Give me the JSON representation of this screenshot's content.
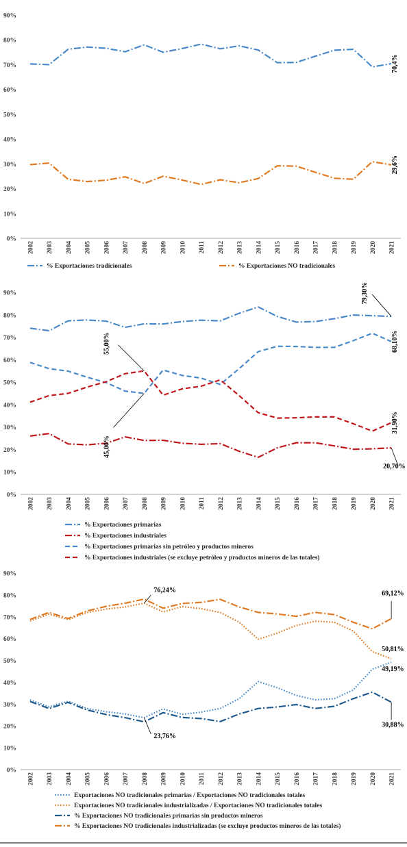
{
  "colors": {
    "blue": "#4a89c8",
    "orange": "#e07a22",
    "red": "#c0181c",
    "darkblue": "#1f5a8c",
    "axis": "#a6a6a6"
  },
  "chart_data": [
    {
      "type": "line",
      "categories": [
        "2002",
        "2003",
        "2004",
        "2005",
        "2006",
        "2007",
        "2008",
        "2009",
        "2010",
        "2011",
        "2012",
        "2013",
        "2014",
        "2015",
        "2016",
        "2017",
        "2018",
        "2019",
        "2020",
        "2021"
      ],
      "ylim": [
        0,
        90
      ],
      "yticks": [
        "0%",
        "10%",
        "20%",
        "30%",
        "40%",
        "50%",
        "60%",
        "70%",
        "80%",
        "90%"
      ],
      "grid": false,
      "legend_position": "bottom",
      "series": [
        {
          "name": "% Exportaciones tradicionales",
          "style": "dashdot",
          "color": "blue",
          "values": [
            70.3,
            70.0,
            76.2,
            77.1,
            76.6,
            75.2,
            78.0,
            75.0,
            76.5,
            78.3,
            76.4,
            77.6,
            75.9,
            70.8,
            70.9,
            73.4,
            75.8,
            76.2,
            69.1,
            70.4
          ]
        },
        {
          "name": "% Exportaciones NO tradicionales",
          "style": "dashdot",
          "color": "orange",
          "values": [
            29.7,
            30.3,
            23.8,
            22.9,
            23.4,
            24.8,
            22.1,
            25.0,
            23.5,
            21.7,
            23.6,
            22.4,
            24.1,
            29.2,
            29.1,
            26.6,
            24.2,
            23.8,
            30.9,
            29.6
          ]
        }
      ],
      "annotations": [
        {
          "text": "70,4%",
          "series": 0,
          "index": 19,
          "dx": 8,
          "dy": 0
        },
        {
          "text": "29,6%",
          "series": 1,
          "index": 19,
          "dx": 8,
          "dy": 0
        }
      ]
    },
    {
      "type": "line",
      "categories": [
        "2002",
        "2003",
        "2004",
        "2005",
        "2006",
        "2007",
        "2008",
        "2009",
        "2010",
        "2011",
        "2012",
        "2013",
        "2014",
        "2015",
        "2016",
        "2017",
        "2018",
        "2019",
        "2020",
        "2021"
      ],
      "ylim": [
        0,
        90
      ],
      "yticks": [
        "0%",
        "10%",
        "20%",
        "30%",
        "40%",
        "50%",
        "60%",
        "70%",
        "80%",
        "90%"
      ],
      "grid": false,
      "legend_position": "bottom",
      "series": [
        {
          "name": "% Exportaciones primarias",
          "style": "dashdot",
          "color": "blue",
          "values": [
            74.0,
            72.9,
            77.3,
            77.7,
            77.2,
            74.4,
            76.0,
            75.9,
            77.0,
            77.6,
            77.3,
            80.7,
            83.5,
            79.3,
            76.8,
            77.0,
            78.3,
            79.9,
            79.6,
            79.3
          ]
        },
        {
          "name": "% Exportaciones industriales",
          "style": "dashdot",
          "color": "red",
          "values": [
            26.0,
            27.1,
            22.5,
            22.1,
            22.8,
            25.6,
            24.0,
            24.1,
            22.8,
            22.3,
            22.6,
            19.2,
            16.5,
            20.7,
            23.0,
            23.0,
            21.6,
            20.1,
            20.3,
            20.7
          ]
        },
        {
          "name": "% Exportaciones primarias sin petróleo y productos mineros",
          "style": "dashed",
          "color": "blue",
          "values": [
            58.8,
            56.0,
            54.9,
            52.2,
            49.8,
            46.0,
            45.0,
            55.4,
            53.0,
            51.8,
            49.0,
            56.0,
            63.6,
            66.0,
            65.9,
            65.5,
            65.5,
            68.5,
            71.8,
            68.1
          ]
        },
        {
          "name": "% Exportaciones industriales (se excluye petróleo y productos mineros de las totales)",
          "style": "dashed",
          "color": "red",
          "values": [
            41.1,
            44.0,
            45.0,
            47.8,
            50.2,
            53.8,
            55.0,
            44.2,
            47.0,
            48.2,
            51.0,
            44.0,
            36.4,
            34.0,
            34.1,
            34.5,
            34.5,
            31.5,
            28.2,
            31.9
          ]
        }
      ],
      "annotations": [
        {
          "text": "79,30%",
          "series": 0,
          "index": 19,
          "lx": -28,
          "ly": -32,
          "tx": -36,
          "ty": -34,
          "rotate": true
        },
        {
          "text": "68,10%",
          "series": 2,
          "index": 19,
          "dx": 8,
          "dy": 0
        },
        {
          "text": "55,00%",
          "series": 3,
          "index": 6,
          "lx": -38,
          "ly": -38,
          "tx": -52,
          "ty": -40,
          "rotate": true
        },
        {
          "text": "45,00%",
          "series": 2,
          "index": 6,
          "lx": -45,
          "ly": 50,
          "tx": -52,
          "ty": 78,
          "rotate": true
        },
        {
          "text": "31,90%",
          "series": 3,
          "index": 19,
          "dx": 8,
          "dy": 0
        },
        {
          "text": "20,70%",
          "series": 1,
          "index": 19,
          "lx": 10,
          "ly": 26,
          "tx": -12,
          "ty": 30,
          "rotate": false
        }
      ]
    },
    {
      "type": "line",
      "categories": [
        "2002",
        "2003",
        "2004",
        "2005",
        "2006",
        "2007",
        "2008",
        "2009",
        "2010",
        "2011",
        "2012",
        "2013",
        "2014",
        "2015",
        "2016",
        "2017",
        "2018",
        "2019",
        "2020",
        "2021"
      ],
      "ylim": [
        0,
        90
      ],
      "yticks": [
        "0%",
        "10%",
        "20%",
        "30%",
        "40%",
        "50%",
        "60%",
        "70%",
        "80%",
        "90%"
      ],
      "grid": false,
      "legend_position": "bottom",
      "series": [
        {
          "name": "Exportaciones NO tradicionales  primarias / Exportaciones NO tradicionales totales",
          "style": "dotted",
          "color": "blue",
          "values": [
            31.9,
            28.8,
            31.3,
            28.0,
            26.5,
            25.5,
            23.8,
            27.8,
            25.3,
            26.3,
            28.0,
            32.5,
            40.3,
            37.5,
            34.0,
            32.0,
            32.5,
            36.5,
            46.0,
            49.2
          ]
        },
        {
          "name": "Exportaciones NO tradicionales industrializadas / Exportaciones NO tradicionales totales",
          "style": "dotted",
          "color": "orange",
          "values": [
            68.1,
            71.2,
            68.7,
            72.0,
            73.5,
            74.5,
            76.2,
            72.2,
            74.7,
            73.7,
            72.0,
            67.5,
            59.7,
            62.5,
            66.0,
            68.0,
            67.5,
            63.5,
            54.0,
            50.8
          ]
        },
        {
          "name": "% Exportaciones NO tradicionales  primarias sin productos mineros",
          "style": "dashdot",
          "color": "darkblue",
          "values": [
            31.2,
            28.0,
            30.8,
            27.3,
            25.2,
            23.8,
            21.9,
            26.1,
            23.9,
            23.4,
            22.0,
            25.5,
            28.0,
            28.7,
            29.8,
            28.0,
            29.0,
            32.5,
            35.5,
            30.9
          ]
        },
        {
          "name": "% Exportaciones NO tradicionales industrializadas (se excluye productos mineros de las totales)",
          "style": "dashdot",
          "color": "orange",
          "values": [
            68.8,
            72.0,
            69.2,
            72.7,
            74.8,
            76.2,
            78.1,
            73.9,
            76.1,
            76.6,
            78.0,
            74.5,
            72.0,
            71.3,
            70.2,
            72.0,
            71.0,
            67.5,
            64.5,
            69.1
          ]
        }
      ],
      "annotations": [
        {
          "text": "76,24%",
          "series": 1,
          "index": 6,
          "lx": 10,
          "ly": -12,
          "tx": 14,
          "ty": -16,
          "rotate": false
        },
        {
          "text": "69,12%",
          "series": 3,
          "index": 19,
          "lx": 0,
          "ly": -26,
          "tx": -14,
          "ty": -34,
          "rotate": false
        },
        {
          "text": "50,81%",
          "series": 1,
          "index": 19,
          "dx": -14,
          "dy": -14,
          "rotate": false
        },
        {
          "text": "49,19%",
          "series": 0,
          "index": 19,
          "dx": -14,
          "dy": 10,
          "rotate": false
        },
        {
          "text": "23,76%",
          "series": 0,
          "index": 6,
          "lx": 10,
          "ly": 24,
          "tx": 14,
          "ty": 30,
          "rotate": false
        },
        {
          "text": "30,88%",
          "series": 2,
          "index": 19,
          "lx": 0,
          "ly": 26,
          "tx": -14,
          "ty": 36,
          "rotate": false
        }
      ]
    }
  ]
}
